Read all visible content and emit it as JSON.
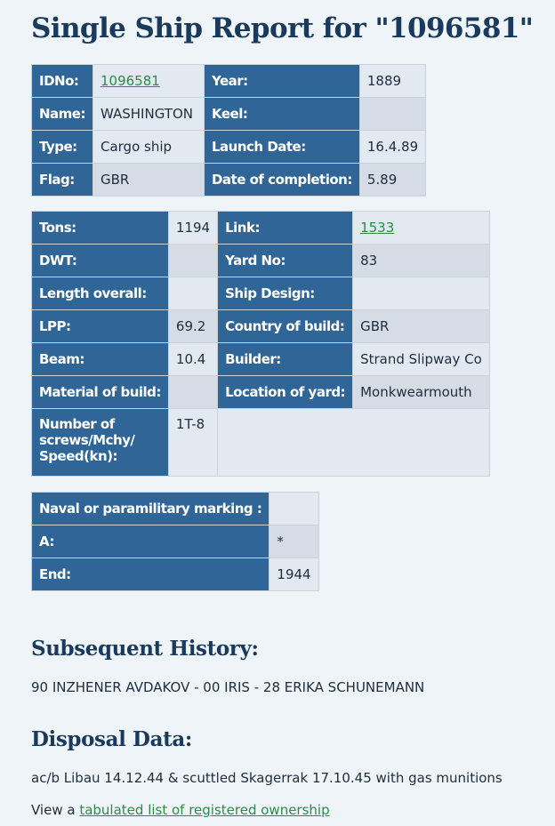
{
  "title": "Single Ship Report for \"1096581\"",
  "table1": {
    "idno_label": "IDNo:",
    "idno_value": "1096581",
    "year_label": "Year:",
    "year_value": "1889",
    "name_label": "Name:",
    "name_value": "WASHINGTON",
    "keel_label": "Keel:",
    "keel_value": "",
    "type_label": "Type:",
    "type_value": "Cargo ship",
    "launch_label": "Launch Date:",
    "launch_value": "16.4.89",
    "flag_label": "Flag:",
    "flag_value": "GBR",
    "completion_label": "Date of completion:",
    "completion_value": "5.89"
  },
  "table2": {
    "tons_label": "Tons:",
    "tons_value": "1194",
    "link_label": "Link:",
    "link_value": "1533",
    "dwt_label": "DWT:",
    "dwt_value": "",
    "yard_label": "Yard No:",
    "yard_value": "83",
    "length_label": "Length overall:",
    "length_value": "",
    "design_label": "Ship Design:",
    "design_value": "",
    "lpp_label": "LPP:",
    "lpp_value": "69.2",
    "country_label": "Country of build:",
    "country_value": "GBR",
    "beam_label": "Beam:",
    "beam_value": "10.4",
    "builder_label": "Builder:",
    "builder_value": "Strand Slipway Co",
    "material_label": "Material of build:",
    "material_value": "",
    "location_label": "Location of yard:",
    "location_value": "Monkwearmouth",
    "screws_label_1": "Number of",
    "screws_label_2": "screws/Mchy/",
    "screws_label_3": "Speed(kn):",
    "screws_value": "1T-8"
  },
  "table3": {
    "naval_label": "Naval or paramilitary marking :",
    "naval_value": "",
    "a_label": "A:",
    "a_value": "*",
    "end_label": "End:",
    "end_value": "1944"
  },
  "history": {
    "heading": "Subsequent History:",
    "text": "90 INZHENER AVDAKOV - 00 IRIS - 28 ERIKA SCHUNEMANN"
  },
  "disposal": {
    "heading": "Disposal Data:",
    "text": "ac/b Libau 14.12.44 & scuttled Skagerrak 17.10.45 with gas munitions"
  },
  "footer": {
    "prefix": "View a ",
    "link_text": "tabulated list of registered ownership"
  },
  "colors": {
    "label_bg": "#2f6597",
    "value_bg": "#e3e9f0",
    "heading": "#193a5c",
    "link": "#2e8b47",
    "page_bg": "#eff4f8"
  }
}
